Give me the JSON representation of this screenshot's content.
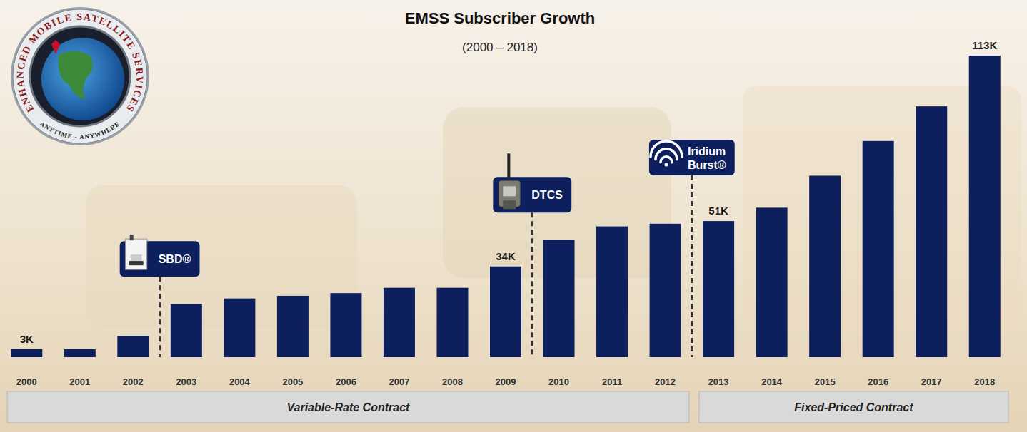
{
  "chart_data": {
    "type": "bar",
    "title": "EMSS Subscriber Growth",
    "subtitle": "(2000 – 2018)",
    "categories": [
      "2000",
      "2001",
      "2002",
      "2003",
      "2004",
      "2005",
      "2006",
      "2007",
      "2008",
      "2009",
      "2010",
      "2011",
      "2012",
      "2013",
      "2014",
      "2015",
      "2016",
      "2017",
      "2018"
    ],
    "values": [
      3,
      3,
      8,
      20,
      22,
      23,
      24,
      26,
      26,
      34,
      44,
      49,
      50,
      51,
      56,
      68,
      81,
      94,
      113
    ],
    "value_labels": [
      "3K",
      null,
      null,
      null,
      null,
      null,
      null,
      null,
      null,
      "34K",
      null,
      null,
      null,
      "51K",
      null,
      null,
      null,
      null,
      "113K"
    ],
    "data_labels": true,
    "color": "#0d1f5c",
    "ylim": [
      0,
      113
    ],
    "tick_labels": "x",
    "grid": false,
    "annotations": [
      {
        "text": "SBD®",
        "at": "2003"
      },
      {
        "text": "DTCS",
        "at": "2010"
      },
      {
        "text": "Iridium Burst®",
        "at": "2013"
      }
    ],
    "periods": [
      {
        "text": "Variable-Rate Contract",
        "from": "2000",
        "to": "2012"
      },
      {
        "text": "Fixed-Priced Contract",
        "from": "2013",
        "to": "2018"
      }
    ]
  },
  "logo": {
    "text": "ENHANCED MOBILE SATELLITE SERVICES",
    "motto": "ANYTIME - ANYWHERE"
  }
}
